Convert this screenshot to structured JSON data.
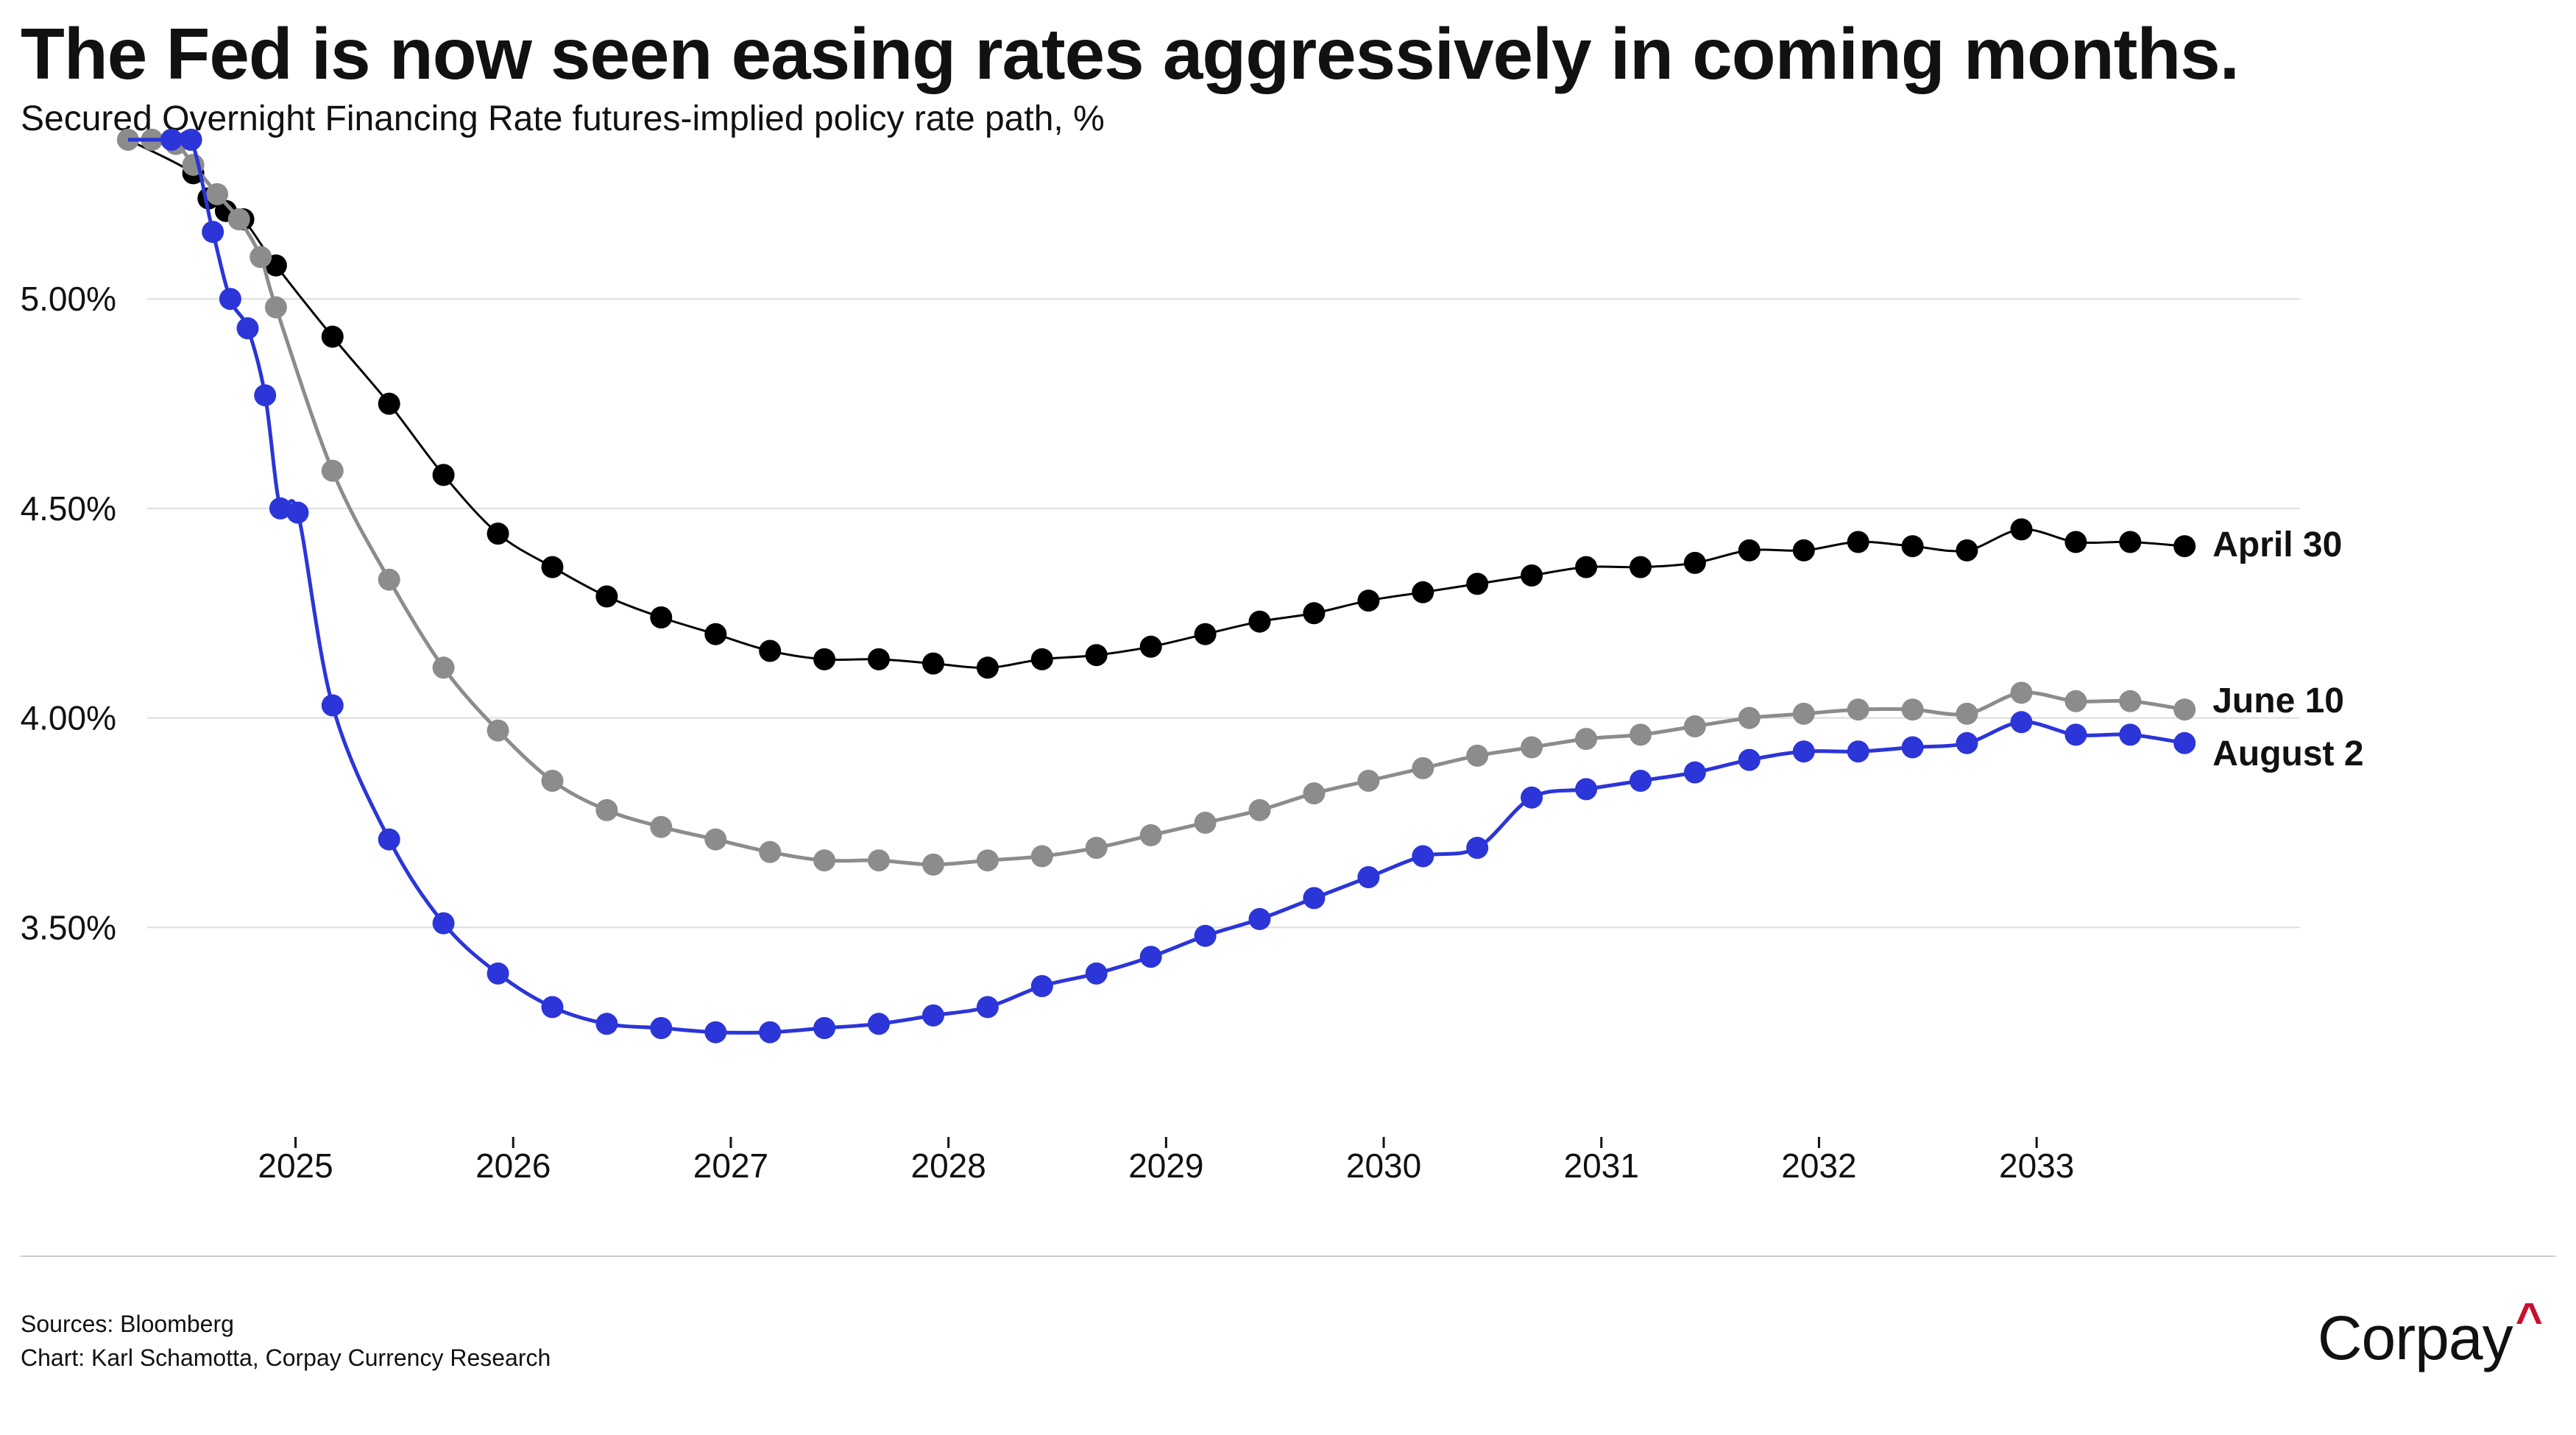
{
  "title": "The Fed is now seen easing rates aggressively in coming months.",
  "subtitle": "Secured Overnight Financing Rate futures-implied policy rate path, %",
  "footer": {
    "sources": "Sources: Bloomberg",
    "credit": "Chart: Karl Schamotta, Corpay Currency Research"
  },
  "logo": {
    "text": "Corpay",
    "mark": "^"
  },
  "colors": {
    "april": "#000000",
    "june": "#8c8c8c",
    "august": "#2b35d8",
    "accent": "#c8102e",
    "grid": "#dddddd"
  },
  "chart_data": {
    "type": "line",
    "xlabel": "",
    "ylabel": "",
    "xlim": [
      2024.2,
      2034.2
    ],
    "ylim": [
      3.0,
      5.45
    ],
    "x_ticks": [
      2025,
      2026,
      2027,
      2028,
      2029,
      2030,
      2031,
      2032,
      2033
    ],
    "x_tick_labels": [
      "2025",
      "2026",
      "2027",
      "2028",
      "2029",
      "2030",
      "2031",
      "2032",
      "2033"
    ],
    "y_ticks": [
      3.5,
      4.0,
      4.5,
      5.0
    ],
    "y_tick_labels": [
      "3.50%",
      "4.00%",
      "4.50%",
      "5.00%"
    ],
    "grid": "horizontal",
    "legend": "end-labels",
    "series": [
      {
        "name": "April 30",
        "color": "#000000",
        "x": [
          2024.53,
          2024.6,
          2024.68,
          2024.76,
          2024.91,
          2025.17,
          2025.43,
          2025.68,
          2025.93,
          2026.18,
          2026.43,
          2026.68,
          2026.93,
          2027.18,
          2027.43,
          2027.68,
          2027.93,
          2028.18,
          2028.43,
          2028.68,
          2028.93,
          2029.18,
          2029.43,
          2029.68,
          2029.93,
          2030.18,
          2030.43,
          2030.68,
          2030.93,
          2031.18,
          2031.43,
          2031.68,
          2031.93,
          2032.18,
          2032.43,
          2032.68,
          2032.93,
          2033.18,
          2033.43,
          2033.68
        ],
        "values": [
          5.3,
          5.24,
          5.21,
          5.19,
          5.08,
          4.91,
          4.75,
          4.58,
          4.44,
          4.36,
          4.29,
          4.24,
          4.2,
          4.16,
          4.14,
          4.14,
          4.13,
          4.12,
          4.14,
          4.15,
          4.17,
          4.2,
          4.23,
          4.25,
          4.28,
          4.3,
          4.32,
          4.34,
          4.36,
          4.36,
          4.37,
          4.4,
          4.4,
          4.42,
          4.41,
          4.4,
          4.45,
          4.42,
          4.42,
          4.41
        ]
      },
      {
        "name": "June 10",
        "color": "#8c8c8c",
        "x": [
          2024.23,
          2024.34,
          2024.45,
          2024.53,
          2024.64,
          2024.74,
          2024.84,
          2024.91,
          2025.17,
          2025.43,
          2025.68,
          2025.93,
          2026.18,
          2026.43,
          2026.68,
          2026.93,
          2027.18,
          2027.43,
          2027.68,
          2027.93,
          2028.18,
          2028.43,
          2028.68,
          2028.93,
          2029.18,
          2029.43,
          2029.68,
          2029.93,
          2030.18,
          2030.43,
          2030.68,
          2030.93,
          2031.18,
          2031.43,
          2031.68,
          2031.93,
          2032.18,
          2032.43,
          2032.68,
          2032.93,
          2033.18,
          2033.43,
          2033.68
        ],
        "values": [
          5.38,
          5.38,
          5.37,
          5.32,
          5.25,
          5.19,
          5.1,
          4.98,
          4.59,
          4.33,
          4.12,
          3.97,
          3.85,
          3.78,
          3.74,
          3.71,
          3.68,
          3.66,
          3.66,
          3.65,
          3.66,
          3.67,
          3.69,
          3.72,
          3.75,
          3.78,
          3.82,
          3.85,
          3.88,
          3.91,
          3.93,
          3.95,
          3.96,
          3.98,
          4.0,
          4.01,
          4.02,
          4.02,
          4.01,
          4.06,
          4.04,
          4.04,
          4.02
        ]
      },
      {
        "name": "August 2",
        "color": "#2b35d8",
        "x": [
          2024.43,
          2024.52,
          2024.62,
          2024.7,
          2024.78,
          2024.86,
          2024.93,
          2025.01,
          2025.17,
          2025.43,
          2025.68,
          2025.93,
          2026.18,
          2026.43,
          2026.68,
          2026.93,
          2027.18,
          2027.43,
          2027.68,
          2027.93,
          2028.18,
          2028.43,
          2028.68,
          2028.93,
          2029.18,
          2029.43,
          2029.68,
          2029.93,
          2030.18,
          2030.43,
          2030.68,
          2030.93,
          2031.18,
          2031.43,
          2031.68,
          2031.93,
          2032.18,
          2032.43,
          2032.68,
          2032.93,
          2033.18,
          2033.43,
          2033.68
        ],
        "values": [
          5.38,
          5.38,
          5.16,
          5.0,
          4.93,
          4.77,
          4.5,
          4.49,
          4.03,
          3.71,
          3.51,
          3.39,
          3.31,
          3.27,
          3.26,
          3.25,
          3.25,
          3.26,
          3.27,
          3.29,
          3.31,
          3.36,
          3.39,
          3.43,
          3.48,
          3.52,
          3.57,
          3.62,
          3.67,
          3.69,
          3.81,
          3.83,
          3.85,
          3.87,
          3.9,
          3.92,
          3.92,
          3.93,
          3.94,
          3.99,
          3.96,
          3.96,
          3.94
        ]
      }
    ]
  }
}
